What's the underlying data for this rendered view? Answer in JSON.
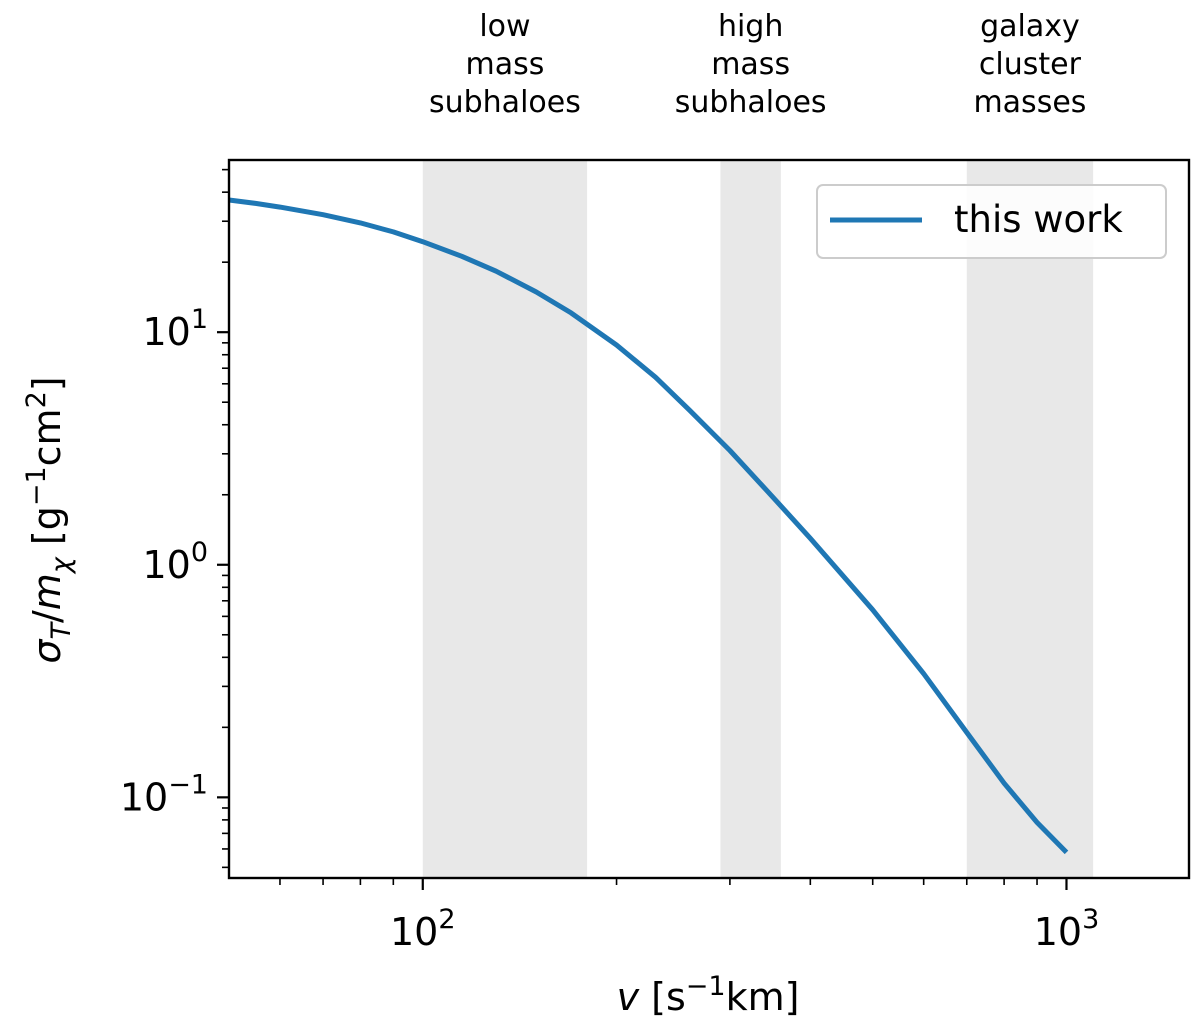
{
  "chart_data": {
    "type": "line",
    "xscale": "log",
    "yscale": "log",
    "xlim": [
      50,
      1550
    ],
    "ylim": [
      0.045,
      55
    ],
    "xlabel": {
      "italic": "v",
      "rest": " [s",
      "sup": "−1",
      "after": "km]"
    },
    "ylabel": {
      "sigma": "σ",
      "sub1": "T",
      "mid": "/",
      "m": "m",
      "sub2": "χ",
      "open": " [g",
      "sup1": "−1",
      "cm": "cm",
      "sup2": "2",
      "close": "]"
    },
    "x_ticks": [
      {
        "value": 100,
        "base": "10",
        "exp": "2"
      },
      {
        "value": 1000,
        "base": "10",
        "exp": "3"
      }
    ],
    "y_ticks": [
      {
        "value": 0.1,
        "base": "10",
        "exp": "−1"
      },
      {
        "value": 1,
        "base": "10",
        "exp": "0"
      },
      {
        "value": 10,
        "base": "10",
        "exp": "1"
      }
    ],
    "bands": [
      {
        "x": [
          100,
          180
        ],
        "label": [
          "low",
          "mass",
          "subhaloes"
        ]
      },
      {
        "x": [
          290,
          360
        ],
        "label": [
          "high",
          "mass",
          "subhaloes"
        ]
      },
      {
        "x": [
          700,
          1100
        ],
        "label": [
          "galaxy",
          "cluster",
          "masses"
        ]
      }
    ],
    "band_color": "#e8e8e8",
    "series": [
      {
        "name": "this work",
        "color": "#1f77b4",
        "x": [
          50,
          55,
          60,
          70,
          80,
          90,
          100,
          115,
          130,
          150,
          170,
          200,
          230,
          260,
          300,
          350,
          400,
          500,
          600,
          700,
          800,
          900,
          1000
        ],
        "y": [
          37,
          35.8,
          34.5,
          32,
          29.5,
          27,
          24.5,
          21.2,
          18.3,
          14.9,
          12.1,
          8.8,
          6.4,
          4.6,
          3.1,
          1.95,
          1.3,
          0.64,
          0.34,
          0.19,
          0.115,
          0.078,
          0.058
        ]
      }
    ],
    "legend": {
      "position": "top-right",
      "entries": [
        "this work"
      ]
    },
    "grid": false
  }
}
